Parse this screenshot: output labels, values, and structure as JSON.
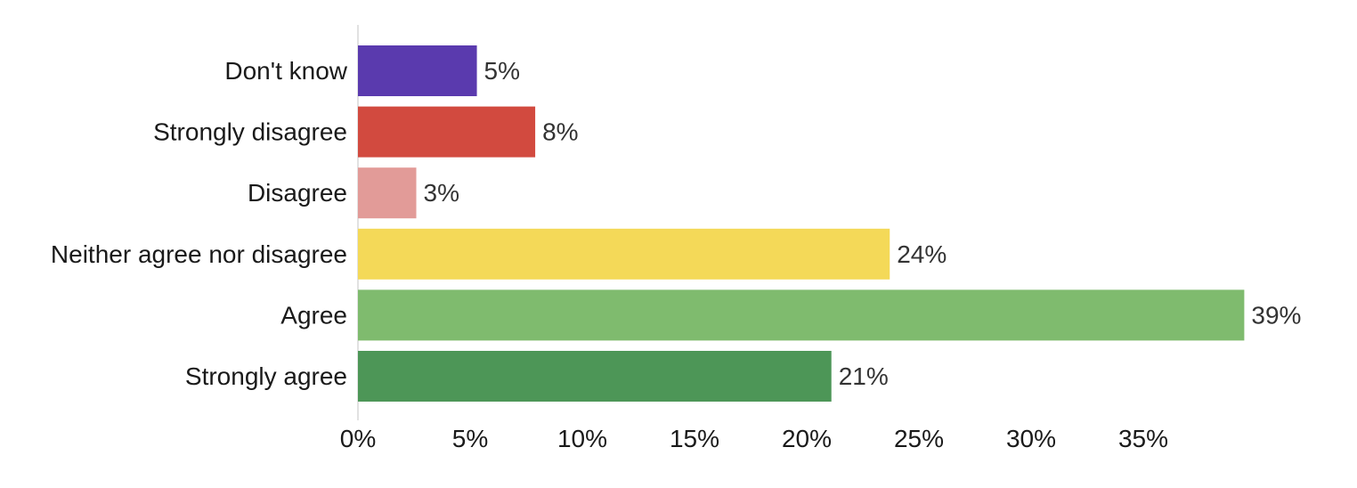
{
  "chart_data": {
    "type": "bar",
    "orientation": "horizontal",
    "categories": [
      "Don't know",
      "Strongly disagree",
      "Disagree",
      "Neither agree nor disagree",
      "Agree",
      "Strongly agree"
    ],
    "values": [
      5.3,
      7.9,
      2.6,
      23.7,
      39.5,
      21.1
    ],
    "value_labels": [
      "5%",
      "8%",
      "3%",
      "24%",
      "39%",
      "21%"
    ],
    "colors": [
      "#5A3AAE",
      "#D24A3F",
      "#E29B98",
      "#F4D958",
      "#7FBB6E",
      "#4D9657"
    ],
    "x_ticks": [
      0,
      5,
      10,
      15,
      20,
      25,
      30,
      35
    ],
    "x_tick_labels": [
      "0%",
      "5%",
      "10%",
      "15%",
      "20%",
      "25%",
      "30%",
      "35%"
    ],
    "xlim": [
      0,
      39.5
    ],
    "grid": false,
    "legend": "none",
    "title": "",
    "xlabel": "",
    "ylabel": ""
  }
}
